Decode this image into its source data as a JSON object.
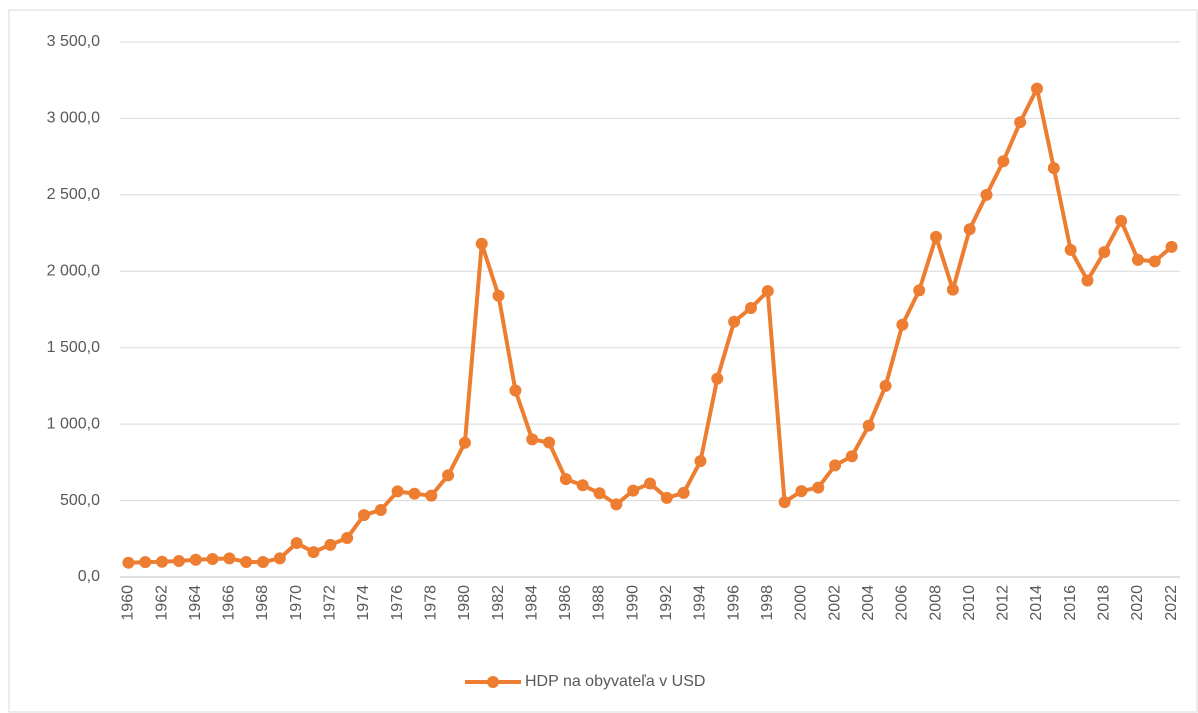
{
  "chart_data": {
    "type": "line",
    "categories": [
      "1960",
      null,
      "1962",
      null,
      "1964",
      null,
      "1966",
      null,
      "1968",
      null,
      "1970",
      null,
      "1972",
      null,
      "1974",
      null,
      "1976",
      null,
      "1978",
      null,
      "1980",
      null,
      "1982",
      null,
      "1984",
      null,
      "1986",
      null,
      "1988",
      null,
      "1990",
      null,
      "1992",
      null,
      "1994",
      null,
      "1996",
      null,
      "1998",
      null,
      "2000",
      null,
      "2002",
      null,
      "2004",
      null,
      "2006",
      null,
      "2008",
      null,
      "2010",
      null,
      "2012",
      null,
      "2014",
      null,
      "2016",
      null,
      "2018",
      null,
      "2020",
      null,
      "2022"
    ],
    "series": [
      {
        "name": "HDP na obyvateľa v USD",
        "color": "#ed7d31",
        "values": [
          93,
          97,
          100,
          105,
          113,
          118,
          122,
          98,
          98,
          122,
          222,
          163,
          210,
          255,
          405,
          438,
          560,
          545,
          532,
          665,
          878,
          2180,
          1840,
          1220,
          900,
          880,
          640,
          600,
          548,
          475,
          565,
          612,
          518,
          550,
          758,
          1298,
          1670,
          1760,
          1870,
          490,
          562,
          585,
          730,
          790,
          990,
          1250,
          1650,
          1875,
          2225,
          1880,
          2275,
          2500,
          2720,
          2975,
          3195,
          2675,
          2140,
          1940,
          2125,
          2330,
          2075,
          2065,
          2160
        ]
      }
    ],
    "ylim": [
      0,
      3500
    ],
    "yticks": [
      {
        "value": 0,
        "label": "0,0"
      },
      {
        "value": 500,
        "label": "500,0"
      },
      {
        "value": 1000,
        "label": "1 000,0"
      },
      {
        "value": 1500,
        "label": "1 500,0"
      },
      {
        "value": 2000,
        "label": "2 000,0"
      },
      {
        "value": 2500,
        "label": "2 500,0"
      },
      {
        "value": 3000,
        "label": "3 000,0"
      },
      {
        "value": 3500,
        "label": "3 500,0"
      }
    ],
    "grid": true,
    "legend": "bottom"
  }
}
